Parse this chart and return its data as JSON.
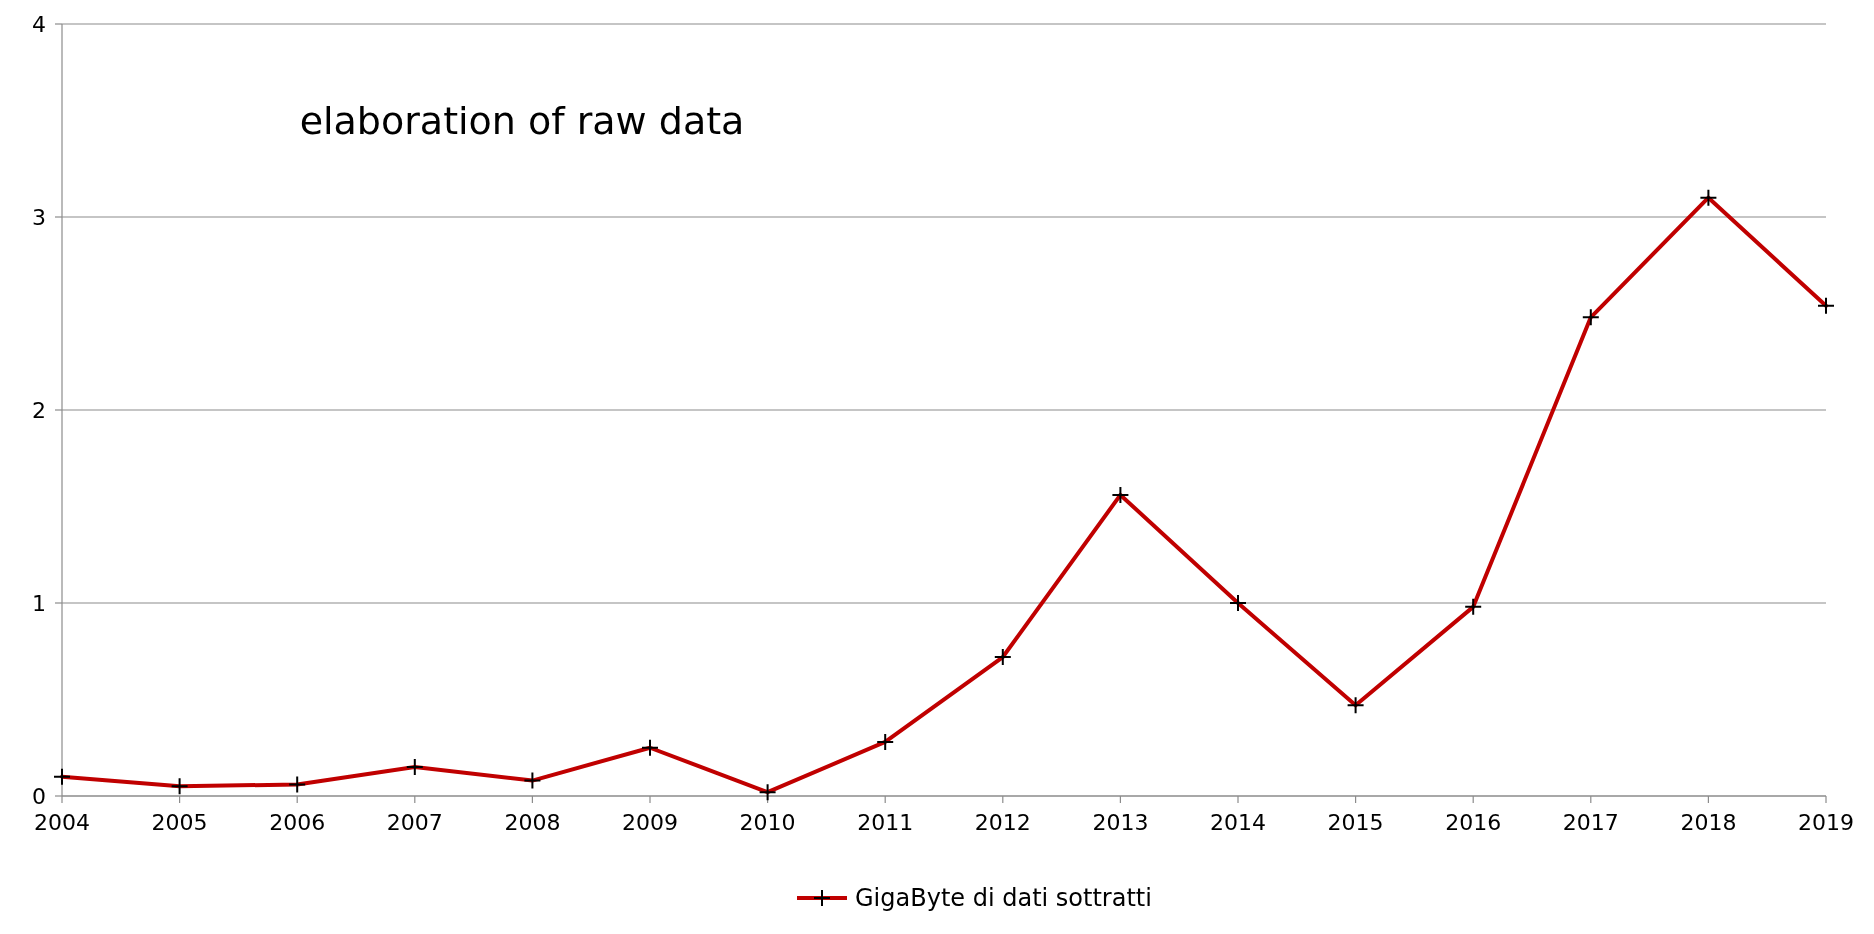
{
  "chart_data": {
    "type": "line",
    "x": [
      2004,
      2005,
      2006,
      2007,
      2008,
      2009,
      2010,
      2011,
      2012,
      2013,
      2014,
      2015,
      2016,
      2017,
      2018,
      2019
    ],
    "series": [
      {
        "name": "GigaByte di dati sottratti",
        "color": "#c00000",
        "values": [
          0.1,
          0.05,
          0.06,
          0.15,
          0.08,
          0.25,
          0.02,
          0.28,
          0.72,
          1.56,
          1.0,
          0.47,
          0.98,
          2.48,
          3.1,
          2.54
        ]
      }
    ],
    "xlim": [
      2004,
      2019
    ],
    "xticks": [
      2004,
      2005,
      2006,
      2007,
      2008,
      2009,
      2010,
      2011,
      2012,
      2013,
      2014,
      2015,
      2016,
      2017,
      2018,
      2019
    ],
    "ylim": [
      0,
      4
    ],
    "yticks": [
      0,
      1,
      2,
      3,
      4
    ],
    "grid": "y",
    "legend": "bottom",
    "marker": "cross",
    "line_style": "solid",
    "annotations": [
      "elaboration of raw data"
    ]
  }
}
